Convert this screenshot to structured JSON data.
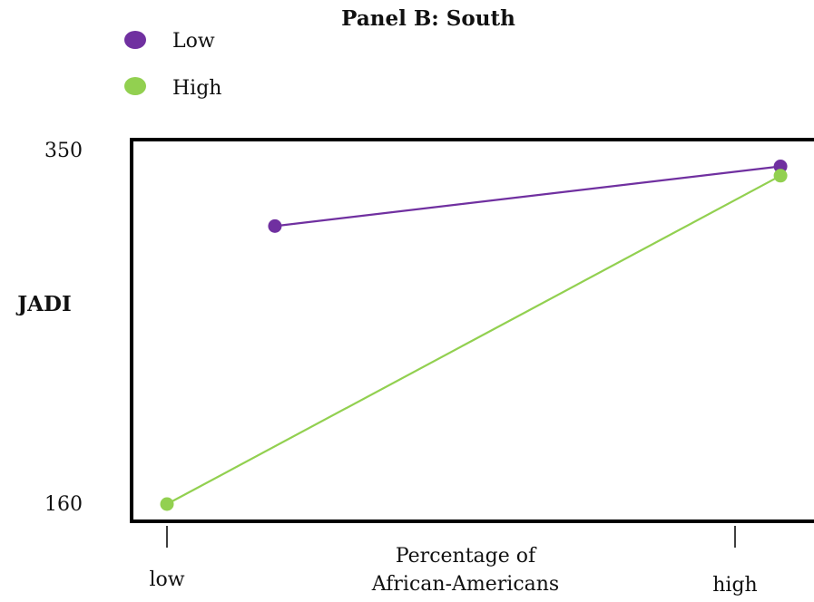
{
  "chart_data": {
    "type": "line",
    "title": "Panel B: South",
    "xlabel": [
      "Percentage of",
      "African-Americans"
    ],
    "ylabel": "JADI",
    "ylim": [
      160,
      350
    ],
    "yticks": [
      {
        "value": 350,
        "label": "350"
      },
      {
        "value": 160,
        "label": "160"
      }
    ],
    "xticks": [
      {
        "value": 0,
        "label": "low"
      },
      {
        "value": 1,
        "label": "high"
      }
    ],
    "legend_position": "top-left",
    "grid": false,
    "series": [
      {
        "name": "Low",
        "color": "#7030a0",
        "points": [
          {
            "x": 0.19,
            "y": 309
          },
          {
            "x": 1.08,
            "y": 341
          }
        ]
      },
      {
        "name": "High",
        "color": "#92d050",
        "points": [
          {
            "x": 0,
            "y": 160
          },
          {
            "x": 1.08,
            "y": 336
          }
        ]
      }
    ]
  }
}
